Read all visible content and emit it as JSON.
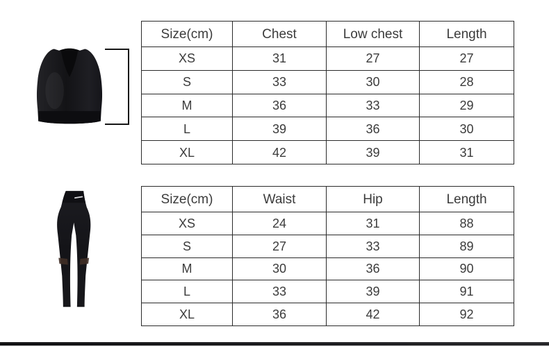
{
  "products": {
    "bra": {
      "photo_label": "black racerback sports bra"
    },
    "leggings": {
      "photo_label": "black high-waist leggings"
    }
  },
  "icons": {
    "length_bracket": "vertical length-measurement bracket"
  },
  "size_tables": [
    {
      "product": "sports-bra",
      "headers": [
        "Size(cm)",
        "Chest",
        "Low chest",
        "Length"
      ],
      "rows": [
        [
          "XS",
          "31",
          "27",
          "27"
        ],
        [
          "S",
          "33",
          "30",
          "28"
        ],
        [
          "M",
          "36",
          "33",
          "29"
        ],
        [
          "L",
          "39",
          "36",
          "30"
        ],
        [
          "XL",
          "42",
          "39",
          "31"
        ]
      ]
    },
    {
      "product": "leggings",
      "headers": [
        "Size(cm)",
        "Waist",
        "Hip",
        "Length"
      ],
      "rows": [
        [
          "XS",
          "24",
          "31",
          "88"
        ],
        [
          "S",
          "27",
          "33",
          "89"
        ],
        [
          "M",
          "30",
          "36",
          "90"
        ],
        [
          "L",
          "33",
          "39",
          "91"
        ],
        [
          "XL",
          "36",
          "42",
          "92"
        ]
      ]
    }
  ],
  "colors": {
    "table_border": "#2a2a2a",
    "table_text": "#3b3b3b",
    "bottom_bar": "#1b1b1d",
    "garment_black": "#17171b",
    "logo_white": "#dcdcdf",
    "mesh_brown": "#3f2d26"
  }
}
